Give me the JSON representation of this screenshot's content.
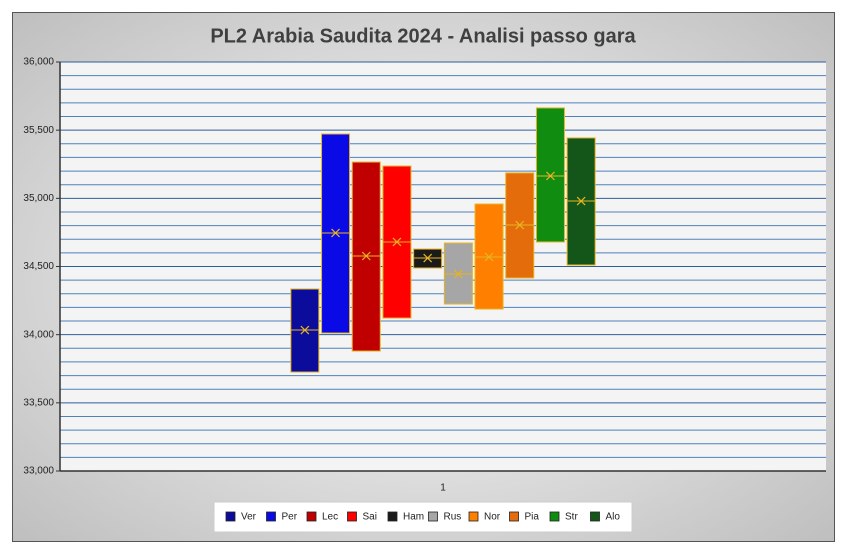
{
  "chart_data": {
    "type": "box",
    "title": "PL2 Arabia Saudita 2024 - Analisi passo gara",
    "categories": [
      "1"
    ],
    "ylim": [
      33000,
      36000
    ],
    "yticks": [
      {
        "value": 33000,
        "label": "33,000"
      },
      {
        "value": 33500,
        "label": "33,500"
      },
      {
        "value": 34000,
        "label": "34,000"
      },
      {
        "value": 34500,
        "label": "34,500"
      },
      {
        "value": 35000,
        "label": "35,000"
      },
      {
        "value": 35500,
        "label": "35,500"
      },
      {
        "value": 36000,
        "label": "36,000"
      }
    ],
    "minor_yticks": [
      33100,
      33200,
      33300,
      33400,
      33600,
      33700,
      33800,
      33900,
      34100,
      34200,
      34300,
      34400,
      34600,
      34700,
      34800,
      34900,
      35100,
      35200,
      35300,
      35400,
      35600,
      35700,
      35800,
      35900
    ],
    "grid": true,
    "series": [
      {
        "name": "Ver",
        "color": "#0c0c9c",
        "min": 33726,
        "max": 34335,
        "median": 34034,
        "mean": 34034
      },
      {
        "name": "Per",
        "color": "#0a0ae6",
        "min": 34012,
        "max": 35472,
        "median": 34746,
        "mean": 34746
      },
      {
        "name": "Lec",
        "color": "#c00000",
        "min": 33880,
        "max": 35266,
        "median": 34577,
        "mean": 34577
      },
      {
        "name": "Sai",
        "color": "#ff0000",
        "min": 34122,
        "max": 35237,
        "median": 34680,
        "mean": 34680
      },
      {
        "name": "Ham",
        "color": "#1a1a1a",
        "min": 34489,
        "max": 34628,
        "median": 34562,
        "mean": 34562
      },
      {
        "name": "Rus",
        "color": "#a6a6a6",
        "min": 34225,
        "max": 34672,
        "median": 34445,
        "mean": 34445
      },
      {
        "name": "Nor",
        "color": "#ff8000",
        "min": 34188,
        "max": 34958,
        "median": 34570,
        "mean": 34570
      },
      {
        "name": "Pia",
        "color": "#e46c0a",
        "min": 34416,
        "max": 35186,
        "median": 34804,
        "mean": 34804
      },
      {
        "name": "Str",
        "color": "#108c10",
        "min": 34680,
        "max": 35663,
        "median": 35164,
        "mean": 35164
      },
      {
        "name": "Alo",
        "color": "#14561a",
        "min": 34511,
        "max": 35443,
        "median": 34980,
        "mean": 34980
      }
    ]
  }
}
